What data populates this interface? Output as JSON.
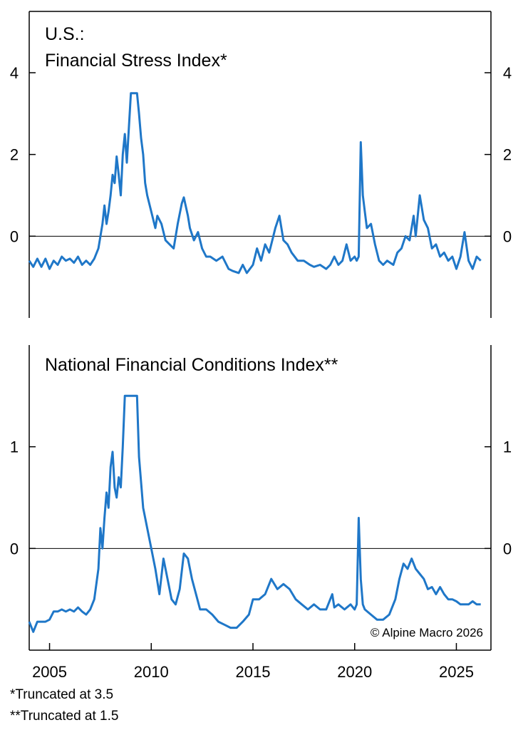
{
  "colors": {
    "line": "#1f77c8",
    "axis": "#000000",
    "background": "#ffffff"
  },
  "chart_data": [
    {
      "type": "line",
      "title": "U.S.:",
      "subtitle": "Financial Stress Index*",
      "ylim": [
        -2,
        5.5
      ],
      "yticks": [
        0,
        2,
        4
      ],
      "truncated_at": 3.5,
      "zero_line": true,
      "series": [
        {
          "x": [
            2004.0,
            2004.2,
            2004.4,
            2004.6,
            2004.8,
            2005.0,
            2005.2,
            2005.4,
            2005.6,
            2005.8,
            2006.0,
            2006.2,
            2006.4,
            2006.6,
            2006.8,
            2007.0,
            2007.2,
            2007.4,
            2007.6,
            2007.7,
            2007.8,
            2007.9,
            2008.0,
            2008.1,
            2008.2,
            2008.3,
            2008.4,
            2008.5,
            2008.6,
            2008.7,
            2008.8,
            2009.0,
            2009.3,
            2009.4,
            2009.5,
            2009.6,
            2009.7,
            2009.8,
            2010.0,
            2010.2,
            2010.3,
            2010.5,
            2010.7,
            2010.9,
            2011.1,
            2011.3,
            2011.5,
            2011.6,
            2011.8,
            2011.9,
            2012.1,
            2012.3,
            2012.5,
            2012.7,
            2012.9,
            2013.2,
            2013.5,
            2013.8,
            2014.0,
            2014.3,
            2014.5,
            2014.7,
            2015.0,
            2015.2,
            2015.4,
            2015.6,
            2015.8,
            2016.0,
            2016.1,
            2016.3,
            2016.5,
            2016.7,
            2016.9,
            2017.2,
            2017.5,
            2017.8,
            2018.0,
            2018.3,
            2018.6,
            2018.8,
            2019.0,
            2019.2,
            2019.4,
            2019.6,
            2019.8,
            2020.0,
            2020.1,
            2020.2,
            2020.3,
            2020.4,
            2020.5,
            2020.6,
            2020.8,
            2021.0,
            2021.2,
            2021.4,
            2021.6,
            2021.9,
            2022.1,
            2022.3,
            2022.5,
            2022.7,
            2022.9,
            2023.0,
            2023.2,
            2023.4,
            2023.6,
            2023.8,
            2024.0,
            2024.2,
            2024.4,
            2024.6,
            2024.8,
            2025.0,
            2025.2,
            2025.4,
            2025.6,
            2025.8,
            2026.0,
            2026.2
          ],
          "values": [
            -0.6,
            -0.75,
            -0.55,
            -0.75,
            -0.55,
            -0.8,
            -0.6,
            -0.7,
            -0.5,
            -0.6,
            -0.55,
            -0.65,
            -0.5,
            -0.7,
            -0.6,
            -0.7,
            -0.55,
            -0.3,
            0.3,
            0.75,
            0.3,
            0.6,
            1.0,
            1.5,
            1.3,
            1.95,
            1.5,
            1.0,
            2.0,
            2.5,
            1.8,
            3.5,
            3.5,
            3.0,
            2.4,
            2.0,
            1.3,
            1.0,
            0.6,
            0.2,
            0.5,
            0.3,
            -0.1,
            -0.2,
            -0.3,
            0.3,
            0.8,
            0.95,
            0.5,
            0.2,
            -0.1,
            0.1,
            -0.3,
            -0.5,
            -0.5,
            -0.6,
            -0.5,
            -0.8,
            -0.85,
            -0.9,
            -0.7,
            -0.9,
            -0.7,
            -0.3,
            -0.6,
            -0.2,
            -0.4,
            0.0,
            0.2,
            0.5,
            -0.1,
            -0.2,
            -0.4,
            -0.6,
            -0.6,
            -0.7,
            -0.75,
            -0.7,
            -0.8,
            -0.7,
            -0.5,
            -0.7,
            -0.6,
            -0.2,
            -0.6,
            -0.5,
            -0.6,
            -0.5,
            2.3,
            1.0,
            0.6,
            0.2,
            0.3,
            -0.2,
            -0.6,
            -0.7,
            -0.6,
            -0.7,
            -0.4,
            -0.3,
            0.0,
            -0.1,
            0.5,
            0.0,
            1.0,
            0.4,
            0.2,
            -0.3,
            -0.2,
            -0.5,
            -0.4,
            -0.6,
            -0.5,
            -0.8,
            -0.5,
            0.1,
            -0.6,
            -0.8,
            -0.5,
            -0.6
          ]
        }
      ]
    },
    {
      "type": "line",
      "title": "National Financial Conditions Index**",
      "ylim": [
        -1.0,
        2.0
      ],
      "yticks": [
        0,
        1
      ],
      "truncated_at": 1.5,
      "zero_line": true,
      "xlim": [
        2004,
        2026.7
      ],
      "xticks": [
        2005,
        2010,
        2015,
        2020,
        2025
      ],
      "series": [
        {
          "x": [
            2004.0,
            2004.2,
            2004.4,
            2004.6,
            2004.8,
            2005.0,
            2005.2,
            2005.4,
            2005.6,
            2005.8,
            2006.0,
            2006.2,
            2006.4,
            2006.6,
            2006.8,
            2007.0,
            2007.2,
            2007.4,
            2007.5,
            2007.6,
            2007.7,
            2007.8,
            2007.9,
            2008.0,
            2008.1,
            2008.2,
            2008.3,
            2008.4,
            2008.5,
            2008.6,
            2008.7,
            2008.8,
            2009.0,
            2009.3,
            2009.4,
            2009.6,
            2009.8,
            2010.0,
            2010.2,
            2010.4,
            2010.6,
            2010.8,
            2011.0,
            2011.2,
            2011.4,
            2011.6,
            2011.8,
            2012.0,
            2012.2,
            2012.4,
            2012.7,
            2013.0,
            2013.3,
            2013.6,
            2013.9,
            2014.2,
            2014.5,
            2014.8,
            2015.0,
            2015.3,
            2015.6,
            2015.9,
            2016.2,
            2016.5,
            2016.8,
            2017.1,
            2017.4,
            2017.7,
            2018.0,
            2018.3,
            2018.6,
            2018.9,
            2019.0,
            2019.2,
            2019.5,
            2019.8,
            2020.0,
            2020.1,
            2020.2,
            2020.3,
            2020.4,
            2020.5,
            2020.8,
            2021.1,
            2021.4,
            2021.7,
            2022.0,
            2022.2,
            2022.4,
            2022.6,
            2022.8,
            2023.0,
            2023.2,
            2023.4,
            2023.6,
            2023.8,
            2024.0,
            2024.2,
            2024.4,
            2024.6,
            2024.8,
            2025.0,
            2025.2,
            2025.4,
            2025.6,
            2025.8,
            2026.0,
            2026.2
          ],
          "values": [
            -0.72,
            -0.82,
            -0.72,
            -0.72,
            -0.72,
            -0.7,
            -0.62,
            -0.62,
            -0.6,
            -0.62,
            -0.6,
            -0.62,
            -0.58,
            -0.62,
            -0.65,
            -0.6,
            -0.5,
            -0.2,
            0.2,
            0.0,
            0.3,
            0.55,
            0.4,
            0.8,
            0.95,
            0.6,
            0.5,
            0.7,
            0.6,
            1.0,
            1.5,
            1.5,
            1.5,
            1.5,
            0.9,
            0.4,
            0.2,
            0.0,
            -0.2,
            -0.45,
            -0.1,
            -0.3,
            -0.5,
            -0.55,
            -0.4,
            -0.05,
            -0.1,
            -0.3,
            -0.45,
            -0.6,
            -0.6,
            -0.65,
            -0.72,
            -0.75,
            -0.78,
            -0.78,
            -0.72,
            -0.65,
            -0.5,
            -0.5,
            -0.45,
            -0.3,
            -0.4,
            -0.35,
            -0.4,
            -0.5,
            -0.55,
            -0.6,
            -0.55,
            -0.6,
            -0.6,
            -0.45,
            -0.58,
            -0.55,
            -0.6,
            -0.55,
            -0.6,
            -0.55,
            0.3,
            -0.3,
            -0.55,
            -0.6,
            -0.65,
            -0.7,
            -0.7,
            -0.65,
            -0.5,
            -0.3,
            -0.15,
            -0.2,
            -0.1,
            -0.2,
            -0.25,
            -0.3,
            -0.4,
            -0.38,
            -0.45,
            -0.38,
            -0.45,
            -0.5,
            -0.5,
            -0.52,
            -0.55,
            -0.55,
            -0.55,
            -0.52,
            -0.55,
            -0.55
          ]
        }
      ]
    }
  ],
  "copyright": "© Alpine Macro 2026",
  "footnotes": [
    "*Truncated at 3.5",
    "**Truncated at 1.5"
  ]
}
